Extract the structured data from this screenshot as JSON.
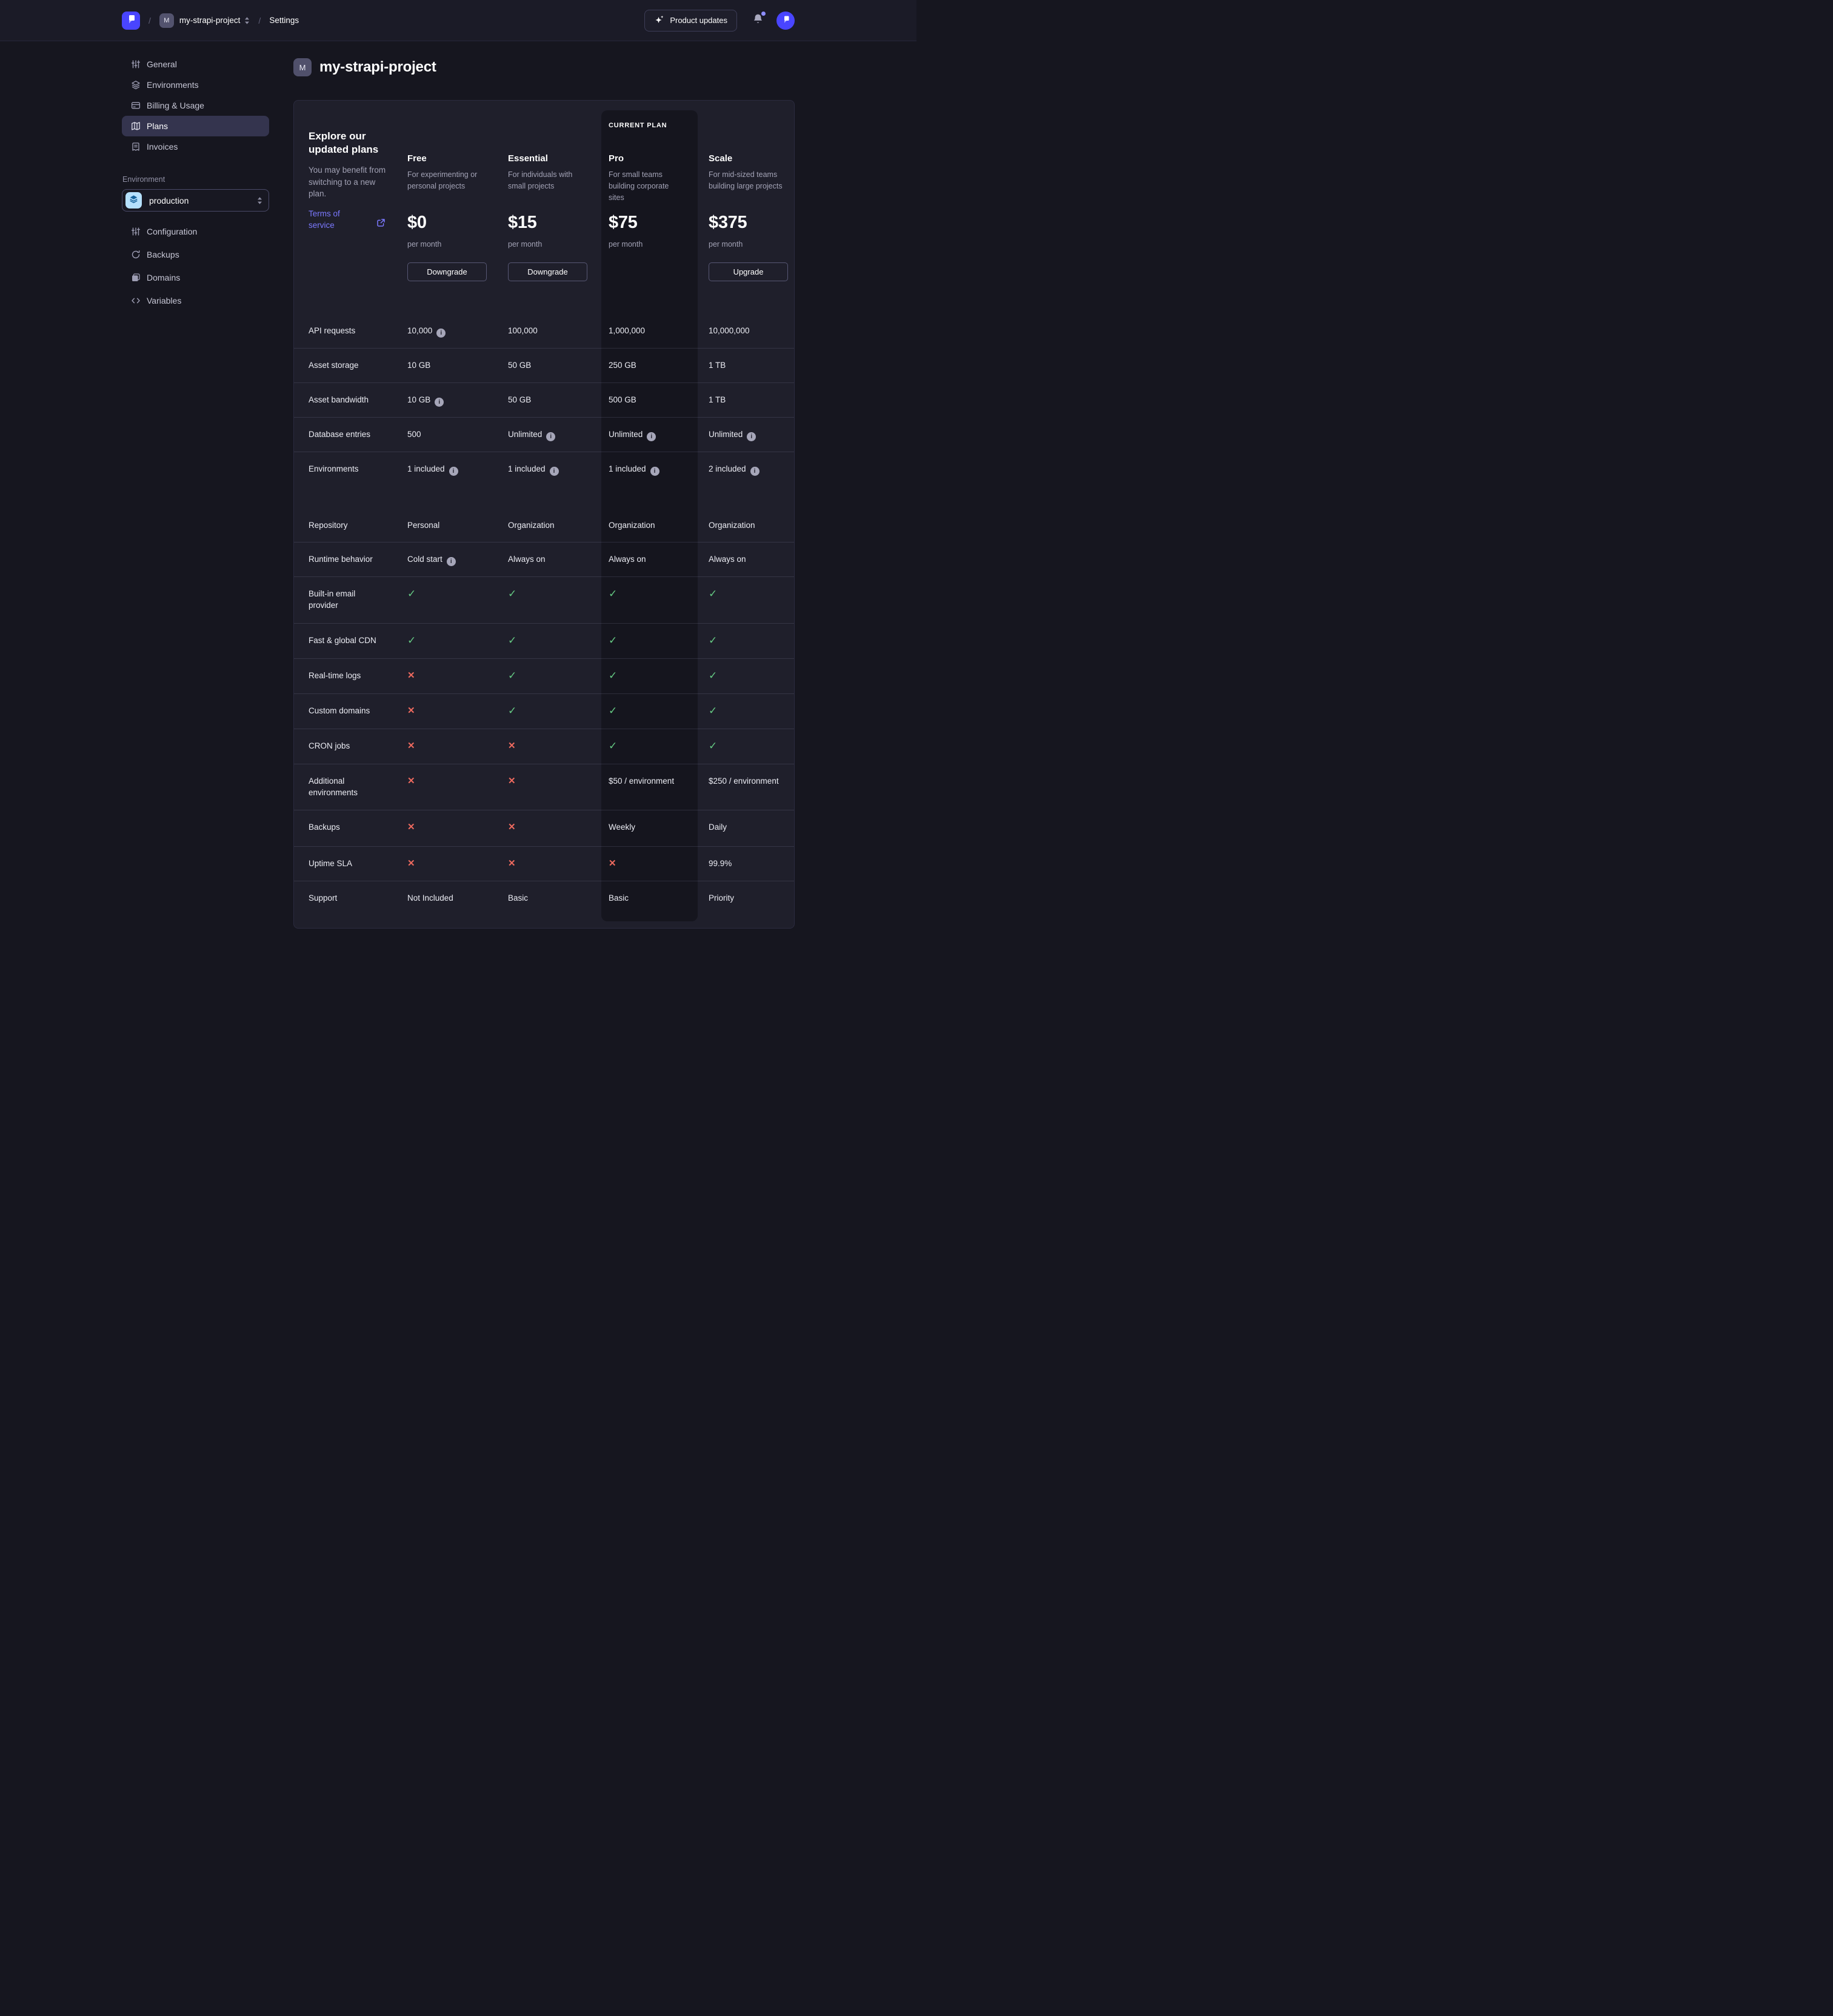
{
  "colors": {
    "accent": "#4945ff",
    "link": "#7b79ff",
    "success": "#65c983",
    "danger": "#ee6a5f",
    "env_tile_bg": "#b5e0fc",
    "env_tile_icon": "#15629b"
  },
  "navbar": {
    "separator": "/",
    "project_badge": "M",
    "project_name": "my-strapi-project",
    "settings_label": "Settings",
    "product_updates_label": "Product updates"
  },
  "sidebar": {
    "project_items": [
      {
        "label": "General",
        "icon": "sliders",
        "active": false
      },
      {
        "label": "Environments",
        "icon": "layers",
        "active": false
      },
      {
        "label": "Billing & Usage",
        "icon": "credit-card",
        "active": false
      },
      {
        "label": "Plans",
        "icon": "map",
        "active": true
      },
      {
        "label": "Invoices",
        "icon": "receipt",
        "active": false
      }
    ],
    "environment_label": "Environment",
    "environment_value": "production",
    "environment_items": [
      {
        "label": "Configuration",
        "icon": "sliders",
        "active": false
      },
      {
        "label": "Backups",
        "icon": "refresh",
        "active": false
      },
      {
        "label": "Domains",
        "icon": "stack",
        "active": false
      },
      {
        "label": "Variables",
        "icon": "code",
        "active": false
      }
    ]
  },
  "page": {
    "title_badge": "M",
    "title": "my-strapi-project"
  },
  "plans": {
    "heading": "Explore our updated plans",
    "subheading": "You may benefit from switching to a new plan.",
    "terms_label": "Terms of service",
    "current_plan_label": "CURRENT PLAN",
    "columns": [
      {
        "name": "Free",
        "description": "For experimenting or personal projects",
        "price": "$0",
        "period": "per month",
        "action": "Downgrade",
        "current": false
      },
      {
        "name": "Essential",
        "description": "For individuals with small projects",
        "price": "$15",
        "period": "per month",
        "action": "Downgrade",
        "current": false
      },
      {
        "name": "Pro",
        "description": "For small teams building corporate sites",
        "price": "$75",
        "period": "per month",
        "action": null,
        "current": true
      },
      {
        "name": "Scale",
        "description": "For mid-sized teams building large projects",
        "price": "$375",
        "period": "per month",
        "action": "Upgrade",
        "current": false
      }
    ],
    "features": [
      {
        "label": "API requests",
        "cells": [
          {
            "t": "text",
            "v": "10,000",
            "info": true
          },
          {
            "t": "text",
            "v": "100,000"
          },
          {
            "t": "text",
            "v": "1,000,000"
          },
          {
            "t": "text",
            "v": "10,000,000"
          }
        ]
      },
      {
        "label": "Asset storage",
        "cells": [
          {
            "t": "text",
            "v": "10 GB"
          },
          {
            "t": "text",
            "v": "50 GB"
          },
          {
            "t": "text",
            "v": "250 GB"
          },
          {
            "t": "text",
            "v": "1 TB"
          }
        ]
      },
      {
        "label": "Asset bandwidth",
        "cells": [
          {
            "t": "text",
            "v": "10 GB",
            "info": true
          },
          {
            "t": "text",
            "v": "50 GB"
          },
          {
            "t": "text",
            "v": "500 GB"
          },
          {
            "t": "text",
            "v": "1 TB"
          }
        ]
      },
      {
        "label": "Database entries",
        "cells": [
          {
            "t": "text",
            "v": "500"
          },
          {
            "t": "text",
            "v": "Unlimited",
            "info": true
          },
          {
            "t": "text",
            "v": "Unlimited",
            "info": true
          },
          {
            "t": "text",
            "v": "Unlimited",
            "info": true
          }
        ]
      },
      {
        "label": "Environments",
        "cells": [
          {
            "t": "text",
            "v": "1 included",
            "info": true
          },
          {
            "t": "text",
            "v": "1 included",
            "info": true
          },
          {
            "t": "text",
            "v": "1 included",
            "info": true
          },
          {
            "t": "text",
            "v": "2 included",
            "info": true
          }
        ],
        "gap_after": true
      },
      {
        "label": "Repository",
        "cells": [
          {
            "t": "text",
            "v": "Personal"
          },
          {
            "t": "text",
            "v": "Organization"
          },
          {
            "t": "text",
            "v": "Organization"
          },
          {
            "t": "text",
            "v": "Organization"
          }
        ]
      },
      {
        "label": "Runtime behavior",
        "cells": [
          {
            "t": "text",
            "v": "Cold start",
            "info": true
          },
          {
            "t": "text",
            "v": "Always on"
          },
          {
            "t": "text",
            "v": "Always on"
          },
          {
            "t": "text",
            "v": "Always on"
          }
        ]
      },
      {
        "label": "Built-in email provider",
        "cells": [
          {
            "t": "check"
          },
          {
            "t": "check"
          },
          {
            "t": "check"
          },
          {
            "t": "check"
          }
        ]
      },
      {
        "label": "Fast & global CDN",
        "cells": [
          {
            "t": "check"
          },
          {
            "t": "check"
          },
          {
            "t": "check"
          },
          {
            "t": "check"
          }
        ]
      },
      {
        "label": "Real-time logs",
        "cells": [
          {
            "t": "cross"
          },
          {
            "t": "check"
          },
          {
            "t": "check"
          },
          {
            "t": "check"
          }
        ]
      },
      {
        "label": "Custom domains",
        "cells": [
          {
            "t": "cross"
          },
          {
            "t": "check"
          },
          {
            "t": "check"
          },
          {
            "t": "check"
          }
        ]
      },
      {
        "label": "CRON jobs",
        "cells": [
          {
            "t": "cross"
          },
          {
            "t": "cross"
          },
          {
            "t": "check"
          },
          {
            "t": "check"
          }
        ]
      },
      {
        "label": "Additional environments",
        "cells": [
          {
            "t": "cross"
          },
          {
            "t": "cross"
          },
          {
            "t": "text",
            "v": "$50 / environment"
          },
          {
            "t": "text",
            "v": "$250 / environment"
          }
        ]
      },
      {
        "label": "Backups",
        "cells": [
          {
            "t": "cross"
          },
          {
            "t": "cross"
          },
          {
            "t": "text",
            "v": "Weekly"
          },
          {
            "t": "text",
            "v": "Daily"
          }
        ]
      },
      {
        "label": "Uptime SLA",
        "cells": [
          {
            "t": "cross"
          },
          {
            "t": "cross"
          },
          {
            "t": "cross"
          },
          {
            "t": "text",
            "v": "99.9%"
          }
        ]
      },
      {
        "label": "Support",
        "cells": [
          {
            "t": "text",
            "v": "Not Included"
          },
          {
            "t": "text",
            "v": "Basic"
          },
          {
            "t": "text",
            "v": "Basic"
          },
          {
            "t": "text",
            "v": "Priority"
          }
        ]
      }
    ]
  }
}
